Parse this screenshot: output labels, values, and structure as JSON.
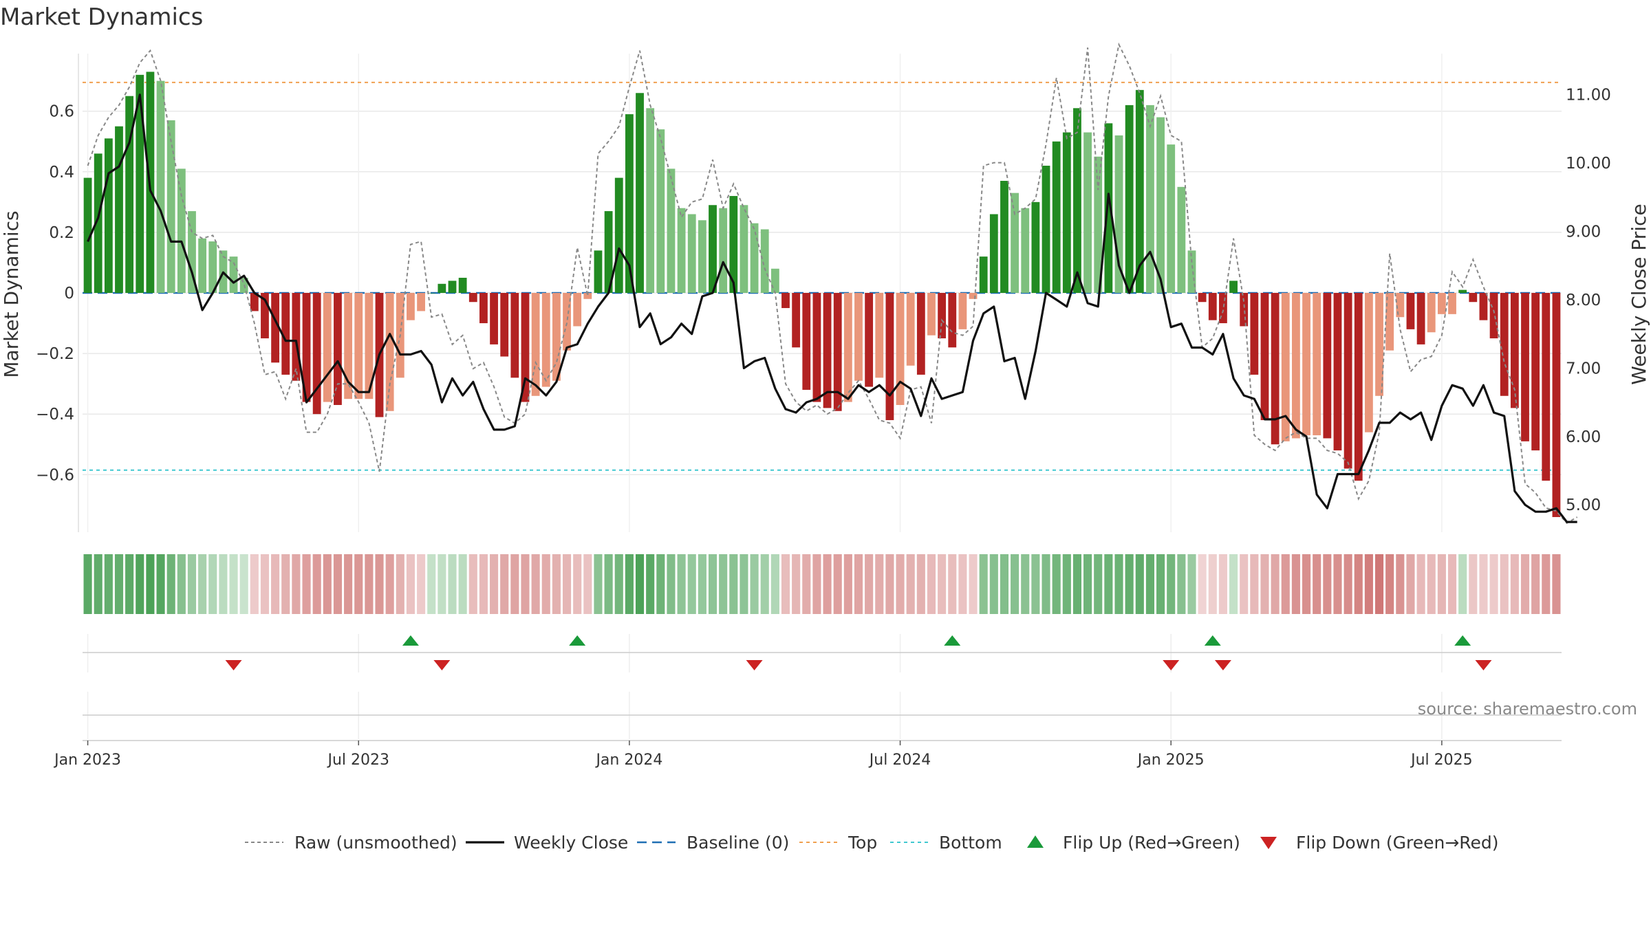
{
  "chart_data": {
    "type": "bar",
    "title": "Market Dynamics",
    "ylabel": "Market Dynamics",
    "y2label": "Weekly Close Price",
    "ylim": [
      -0.79,
      0.79
    ],
    "y2lim": [
      4.6,
      11.6
    ],
    "yticks": [
      0.6,
      0.4,
      0.2,
      0,
      -0.2,
      -0.4,
      -0.6
    ],
    "ytick_labels": [
      "0.6",
      "0.4",
      "0.2",
      "0",
      "−0.2",
      "−0.4",
      "−0.6"
    ],
    "y2ticks": [
      11,
      10,
      9,
      8,
      7,
      6,
      5
    ],
    "y2tick_labels": [
      "11.00",
      "10.00",
      "9.00",
      "8.00",
      "7.00",
      "6.00",
      "5.00"
    ],
    "top_level": 0.695,
    "bottom_level": -0.585,
    "grid": true,
    "legend_position": "bottom-center",
    "source": "source: sharemaestro.com",
    "x_tick_labels": [
      "Jan 2023",
      "Jul 2023",
      "Jan 2024",
      "Jul 2024",
      "Jan 2025",
      "Jul 2025"
    ],
    "x_tick_weeks": [
      0,
      26,
      52,
      78,
      104,
      130
    ],
    "flip_up_weeks": [
      31,
      47,
      83,
      108,
      132
    ],
    "flip_down_weeks": [
      14,
      34,
      64,
      104,
      109,
      134
    ],
    "dynamics": [
      0.38,
      0.46,
      0.51,
      0.55,
      0.65,
      0.72,
      0.73,
      0.7,
      0.57,
      0.41,
      0.27,
      0.18,
      0.17,
      0.14,
      0.12,
      0.05,
      -0.06,
      -0.15,
      -0.23,
      -0.27,
      -0.29,
      -0.36,
      -0.4,
      -0.36,
      -0.37,
      -0.35,
      -0.35,
      -0.35,
      -0.41,
      -0.39,
      -0.28,
      -0.09,
      -0.06,
      0.0,
      0.03,
      0.04,
      0.05,
      -0.03,
      -0.1,
      -0.17,
      -0.21,
      -0.28,
      -0.36,
      -0.34,
      -0.31,
      -0.29,
      -0.19,
      -0.11,
      -0.02,
      0.14,
      0.27,
      0.38,
      0.59,
      0.66,
      0.61,
      0.54,
      0.41,
      0.28,
      0.26,
      0.24,
      0.29,
      0.28,
      0.32,
      0.29,
      0.23,
      0.21,
      0.08,
      -0.05,
      -0.18,
      -0.32,
      -0.36,
      -0.38,
      -0.39,
      -0.36,
      -0.29,
      -0.31,
      -0.28,
      -0.42,
      -0.37,
      -0.24,
      -0.27,
      -0.14,
      -0.15,
      -0.18,
      -0.12,
      -0.02,
      0.12,
      0.26,
      0.37,
      0.33,
      0.28,
      0.3,
      0.42,
      0.5,
      0.53,
      0.61,
      0.53,
      0.45,
      0.56,
      0.52,
      0.62,
      0.67,
      0.62,
      0.58,
      0.49,
      0.35,
      0.14,
      -0.03,
      -0.09,
      -0.1,
      0.04,
      -0.11,
      -0.27,
      -0.42,
      -0.5,
      -0.49,
      -0.48,
      -0.47,
      -0.47,
      -0.48,
      -0.52,
      -0.58,
      -0.62,
      -0.46,
      -0.34,
      -0.19,
      -0.08,
      -0.12,
      -0.17,
      -0.13,
      -0.07,
      -0.07,
      0.01,
      -0.03,
      -0.09,
      -0.15,
      -0.34,
      -0.38,
      -0.49,
      -0.52,
      -0.62,
      -0.74
    ],
    "raw": [
      0.42,
      0.52,
      0.58,
      0.62,
      0.68,
      0.76,
      0.8,
      0.7,
      0.5,
      0.32,
      0.2,
      0.18,
      0.19,
      0.12,
      0.1,
      0.03,
      -0.1,
      -0.27,
      -0.26,
      -0.35,
      -0.25,
      -0.46,
      -0.46,
      -0.4,
      -0.3,
      -0.3,
      -0.36,
      -0.43,
      -0.59,
      -0.3,
      -0.14,
      0.16,
      0.17,
      -0.08,
      -0.07,
      -0.17,
      -0.14,
      -0.25,
      -0.23,
      -0.31,
      -0.41,
      -0.43,
      -0.4,
      -0.23,
      -0.29,
      -0.23,
      -0.1,
      0.15,
      -0.01,
      0.46,
      0.5,
      0.55,
      0.68,
      0.8,
      0.62,
      0.51,
      0.38,
      0.25,
      0.3,
      0.31,
      0.44,
      0.28,
      0.36,
      0.28,
      0.21,
      0.08,
      0.0,
      -0.3,
      -0.36,
      -0.39,
      -0.37,
      -0.4,
      -0.38,
      -0.33,
      -0.29,
      -0.35,
      -0.42,
      -0.43,
      -0.48,
      -0.32,
      -0.31,
      -0.43,
      -0.09,
      -0.13,
      -0.14,
      -0.11,
      0.42,
      0.43,
      0.43,
      0.26,
      0.28,
      0.31,
      0.49,
      0.71,
      0.51,
      0.53,
      0.81,
      0.34,
      0.65,
      0.82,
      0.75,
      0.66,
      0.55,
      0.65,
      0.52,
      0.5,
      0.1,
      -0.18,
      -0.15,
      -0.06,
      0.18,
      -0.03,
      -0.47,
      -0.5,
      -0.52,
      -0.48,
      -0.46,
      -0.48,
      -0.48,
      -0.52,
      -0.53,
      -0.56,
      -0.68,
      -0.62,
      -0.46,
      0.13,
      -0.12,
      -0.26,
      -0.22,
      -0.21,
      -0.14,
      0.07,
      0.02,
      0.11,
      0.02,
      -0.06,
      -0.23,
      -0.32,
      -0.63,
      -0.66,
      -0.71,
      -0.72,
      -0.76,
      -0.74
    ],
    "close": [
      8.85,
      9.2,
      9.85,
      9.95,
      10.3,
      11.0,
      9.6,
      9.3,
      8.85,
      8.85,
      8.4,
      7.85,
      8.1,
      8.4,
      8.25,
      8.35,
      8.1,
      8.0,
      7.7,
      7.4,
      7.4,
      6.5,
      6.7,
      6.9,
      7.1,
      6.8,
      6.65,
      6.65,
      7.2,
      7.5,
      7.2,
      7.2,
      7.25,
      7.05,
      6.5,
      6.85,
      6.6,
      6.8,
      6.4,
      6.1,
      6.1,
      6.15,
      6.85,
      6.75,
      6.6,
      6.8,
      7.3,
      7.35,
      7.65,
      7.9,
      8.1,
      8.75,
      8.5,
      7.6,
      7.8,
      7.35,
      7.45,
      7.65,
      7.5,
      8.05,
      8.1,
      8.55,
      8.25,
      7.0,
      7.1,
      7.15,
      6.7,
      6.4,
      6.35,
      6.5,
      6.55,
      6.65,
      6.65,
      6.55,
      6.75,
      6.65,
      6.75,
      6.6,
      6.8,
      6.7,
      6.3,
      6.85,
      6.55,
      6.6,
      6.65,
      7.4,
      7.8,
      7.9,
      7.1,
      7.15,
      6.55,
      7.25,
      8.1,
      8.0,
      7.9,
      8.4,
      7.95,
      7.9,
      9.55,
      8.5,
      8.1,
      8.5,
      8.7,
      8.3,
      7.6,
      7.65,
      7.3,
      7.3,
      7.2,
      7.5,
      6.85,
      6.6,
      6.55,
      6.25,
      6.25,
      6.3,
      6.1,
      6.0,
      5.15,
      4.95,
      5.45,
      5.45,
      5.45,
      5.8,
      6.2,
      6.2,
      6.35,
      6.25,
      6.35,
      5.95,
      6.45,
      6.75,
      6.7,
      6.45,
      6.75,
      6.35,
      6.3,
      5.2,
      5.0,
      4.9,
      4.9,
      4.95,
      4.75,
      4.75
    ],
    "strip_opacity": [
      0.85,
      0.82,
      0.8,
      0.8,
      0.84,
      0.9,
      0.92,
      0.88,
      0.75,
      0.62,
      0.52,
      0.45,
      0.4,
      0.35,
      0.3,
      0.28,
      0.3,
      0.35,
      0.4,
      0.45,
      0.5,
      0.55,
      0.58,
      0.6,
      0.6,
      0.6,
      0.6,
      0.6,
      0.6,
      0.55,
      0.45,
      0.35,
      0.3,
      0.3,
      0.32,
      0.35,
      0.35,
      0.38,
      0.4,
      0.45,
      0.5,
      0.52,
      0.52,
      0.5,
      0.48,
      0.45,
      0.42,
      0.38,
      0.35,
      0.6,
      0.68,
      0.72,
      0.85,
      0.92,
      0.85,
      0.75,
      0.65,
      0.58,
      0.55,
      0.55,
      0.58,
      0.58,
      0.6,
      0.58,
      0.52,
      0.48,
      0.4,
      0.38,
      0.42,
      0.48,
      0.52,
      0.55,
      0.55,
      0.55,
      0.52,
      0.5,
      0.48,
      0.5,
      0.48,
      0.45,
      0.45,
      0.4,
      0.38,
      0.38,
      0.35,
      0.3,
      0.6,
      0.62,
      0.64,
      0.62,
      0.6,
      0.6,
      0.66,
      0.72,
      0.74,
      0.78,
      0.74,
      0.72,
      0.76,
      0.76,
      0.8,
      0.82,
      0.8,
      0.78,
      0.72,
      0.62,
      0.52,
      0.25,
      0.28,
      0.3,
      0.3,
      0.35,
      0.4,
      0.45,
      0.5,
      0.58,
      0.62,
      0.64,
      0.64,
      0.64,
      0.64,
      0.66,
      0.7,
      0.74,
      0.78,
      0.7,
      0.62,
      0.5,
      0.4,
      0.4,
      0.42,
      0.4,
      0.35,
      0.32,
      0.3,
      0.3,
      0.35,
      0.4,
      0.48,
      0.52,
      0.58,
      0.62,
      0.7,
      0.8
    ],
    "legend": [
      {
        "key": "raw",
        "label": "Raw (unsmoothed)"
      },
      {
        "key": "close",
        "label": "Weekly Close"
      },
      {
        "key": "baseline",
        "label": "Baseline (0)"
      },
      {
        "key": "top",
        "label": "Top"
      },
      {
        "key": "bottom",
        "label": "Bottom"
      },
      {
        "key": "flip_up",
        "label": "Flip Up (Red→Green)"
      },
      {
        "key": "flip_down",
        "label": "Flip Down (Green→Red)"
      }
    ],
    "colors": {
      "strong_green": "#228b22",
      "weak_green": "#7ec07e",
      "strong_red": "#b22222",
      "weak_red": "#e9967a",
      "strip_green": "#3d9a4a",
      "strip_red": "#c2514f",
      "close_line": "#111111",
      "raw_line": "#888888",
      "baseline": "#1f6fb4",
      "top_line": "#f0a050",
      "bottom_line": "#40c8d0",
      "flip_up": "#1a9a3a",
      "flip_down": "#cc2222"
    }
  }
}
